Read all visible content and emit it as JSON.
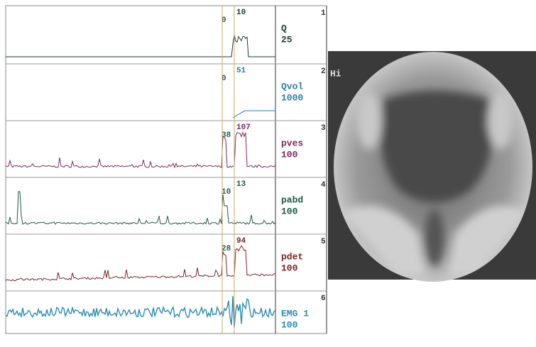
{
  "channels": [
    {
      "number": "1",
      "name": "Q",
      "scale": "25",
      "markers": [
        "0",
        "10"
      ],
      "color": "#1e3b30"
    },
    {
      "number": "2",
      "name": "Qvol",
      "scale": "1000",
      "markers": [
        "0",
        "51"
      ],
      "color": "#2b7ea8"
    },
    {
      "number": "3",
      "name": "pves",
      "scale": "100",
      "markers": [
        "38",
        "107"
      ],
      "color": "#7a2a5e"
    },
    {
      "number": "4",
      "name": "pabd",
      "scale": "100",
      "markers": [
        "10",
        "13"
      ],
      "color": "#1f5a40"
    },
    {
      "number": "5",
      "name": "pdet",
      "scale": "100",
      "markers": [
        "28",
        "94"
      ],
      "color": "#7a2424"
    },
    {
      "number": "6",
      "name": "EMG 1",
      "scale": "100",
      "markers": [],
      "color": "#2a8cb4"
    }
  ],
  "image": {
    "label": "Hi"
  }
}
